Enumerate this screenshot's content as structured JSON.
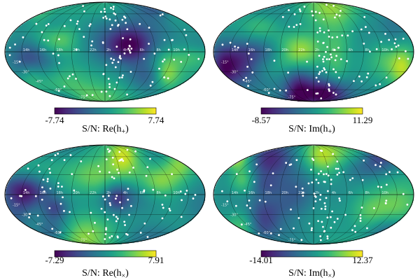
{
  "chart_data": [
    {
      "type": "heatmap",
      "projection": "mollweide",
      "colormap": "viridis",
      "title": "S/N: Re(h+)",
      "colorbar": {
        "min": -7.74,
        "max": 7.74,
        "min_label": "-7.74",
        "max_label": "7.74"
      },
      "label_main": "S/N: Re(h",
      "label_sub": "+",
      "label_close": ")",
      "ra_labels": [
        "10h",
        "8h",
        "6h",
        "4h",
        "2h",
        "22h",
        "20h",
        "18h",
        "16h",
        "14h"
      ],
      "dec_labels": [
        "-15°",
        "-30°",
        "-45°",
        "-60°",
        "-75°"
      ],
      "seed": 11
    },
    {
      "type": "heatmap",
      "projection": "mollweide",
      "colormap": "viridis",
      "title": "S/N: Im(h+)",
      "colorbar": {
        "min": -8.57,
        "max": 11.29,
        "min_label": "-8.57",
        "max_label": "11.29"
      },
      "label_main": "S/N: Im(h",
      "label_sub": "+",
      "label_close": ")",
      "ra_labels": [
        "10h",
        "8h",
        "6h",
        "4h",
        "2h",
        "22h",
        "20h",
        "18h",
        "16h",
        "14h"
      ],
      "dec_labels": [
        "-15°",
        "-30°",
        "-45°",
        "-60°",
        "-75°"
      ],
      "seed": 23
    },
    {
      "type": "heatmap",
      "projection": "mollweide",
      "colormap": "viridis",
      "title": "S/N: Re(h×)",
      "colorbar": {
        "min": -7.29,
        "max": 7.91,
        "min_label": "-7.29",
        "max_label": "7.91"
      },
      "label_main": "S/N: Re(h",
      "label_sub": "×",
      "label_close": ")",
      "ra_labels": [
        "10h",
        "8h",
        "6h",
        "4h",
        "2h",
        "22h",
        "20h",
        "18h",
        "16h",
        "14h"
      ],
      "dec_labels": [
        "-15°",
        "-30°",
        "-45°",
        "-60°",
        "-75°"
      ],
      "seed": 37
    },
    {
      "type": "heatmap",
      "projection": "mollweide",
      "colormap": "viridis",
      "title": "S/N: Im(h×)",
      "colorbar": {
        "min": -14.01,
        "max": 12.37,
        "min_label": "-14.01",
        "max_label": "12.37"
      },
      "label_main": "S/N: Im(h",
      "label_sub": "×",
      "label_close": ")",
      "ra_labels": [
        "10h",
        "8h",
        "6h",
        "4h",
        "2h",
        "22h",
        "20h",
        "18h",
        "16h",
        "14h"
      ],
      "dec_labels": [
        "-15°",
        "-30°",
        "-45°",
        "-60°",
        "-75°"
      ],
      "seed": 53
    }
  ]
}
